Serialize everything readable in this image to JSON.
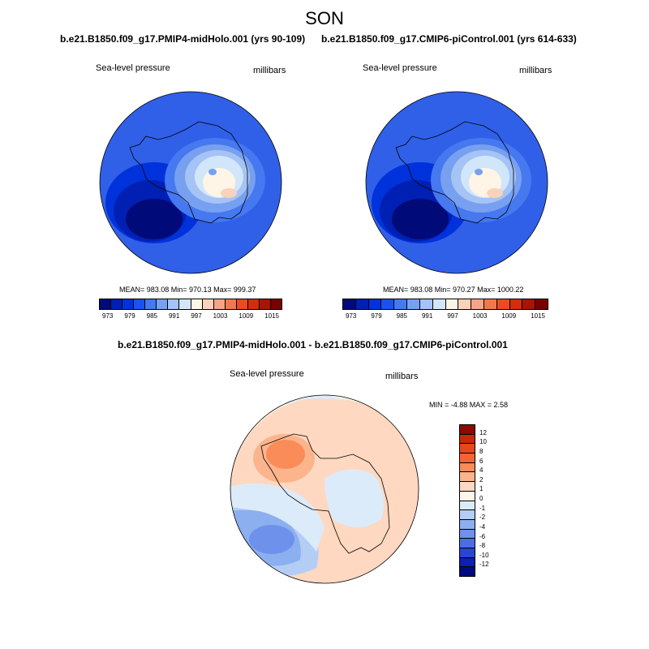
{
  "header": {
    "title": "SON"
  },
  "panels": [
    {
      "case_title": "b.e21.B1850.f09_g17.PMIP4-midHolo.001 (yrs 90-109)",
      "variable": "Sea-level pressure",
      "units": "millibars",
      "stats": "MEAN= 983.08  Min= 970.13  Max= 999.37"
    },
    {
      "case_title": "b.e21.B1850.f09_g17.CMIP6-piControl.001 (yrs 614-633)",
      "variable": "Sea-level pressure",
      "units": "millibars",
      "stats": "MEAN= 983.08  Min= 970.27  Max= 1000.22"
    }
  ],
  "abs_colorbar": {
    "colors": [
      "#000a78",
      "#0020b4",
      "#0032dc",
      "#1e50f0",
      "#4678f0",
      "#78a0f0",
      "#a5c3f5",
      "#d2e6fa",
      "#fff5e6",
      "#fad2b9",
      "#f5a587",
      "#f07850",
      "#eb4b23",
      "#d22d0f",
      "#aa1405",
      "#780000"
    ],
    "tick_labels": [
      "973",
      "979",
      "985",
      "991",
      "997",
      "1003",
      "1009",
      "1015"
    ]
  },
  "diff": {
    "title": "b.e21.B1850.f09_g17.PMIP4-midHolo.001 - b.e21.B1850.f09_g17.CMIP6-piControl.001",
    "variable": "Sea-level pressure",
    "units": "millibars",
    "stats": "MIN =  -4.88 MAX =   2.58",
    "colors": [
      "#8c0a00",
      "#c8280a",
      "#e6461e",
      "#f56432",
      "#fa8c5a",
      "#fcb48c",
      "#fed8c0",
      "#fff5eb",
      "#dcebfa",
      "#b4cdf5",
      "#8caff0",
      "#6e91eb",
      "#4b6ee6",
      "#2846d2",
      "#0f1eb4",
      "#000a82"
    ],
    "tick_labels": [
      "12",
      "10",
      "8",
      "6",
      "4",
      "2",
      "1",
      "0",
      "-1",
      "-2",
      "-4",
      "-6",
      "-8",
      "-10",
      "-12"
    ]
  }
}
